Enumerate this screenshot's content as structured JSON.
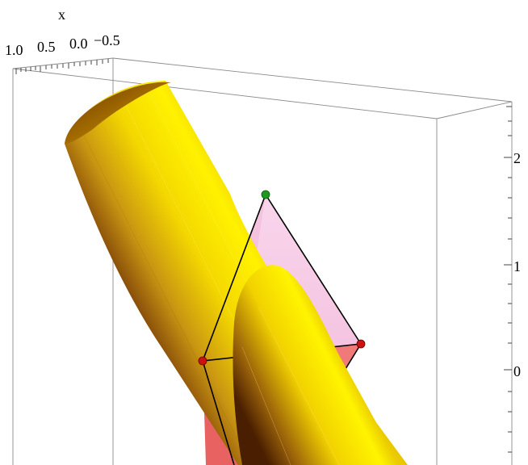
{
  "plot": {
    "x_axis": {
      "title": "x",
      "tick_labels": [
        "1.0",
        "0.5",
        "0.0",
        "−0.5"
      ]
    },
    "z_axis": {
      "tick_labels": [
        "2",
        "1",
        "0"
      ]
    }
  },
  "colors": {
    "cylinder_light": "#ffee00",
    "cylinder_mid": "#e8c400",
    "cylinder_dark": "#5a2600",
    "tetra_face_light": "#f7cce6",
    "tetra_face_red": "#f07a7a",
    "vertex_apex": "#1f9a1f",
    "vertex_base": "#cc1111"
  }
}
